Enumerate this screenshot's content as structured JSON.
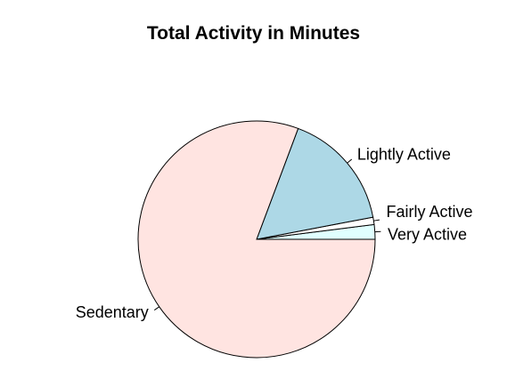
{
  "chart_data": {
    "type": "pie",
    "title": "Total Activity in Minutes",
    "direction": "counterclockwise",
    "start": "3 o'clock",
    "slices": [
      {
        "label": "Very Active",
        "value": 2.0,
        "color": "#E0FFFF"
      },
      {
        "label": "Fairly Active",
        "value": 1.0,
        "color": "#FFFFFF"
      },
      {
        "label": "Lightly Active",
        "value": 16.3,
        "color": "#ADD8E6"
      },
      {
        "label": "Sedentary",
        "value": 80.7,
        "color": "#FFE4E1"
      }
    ]
  }
}
